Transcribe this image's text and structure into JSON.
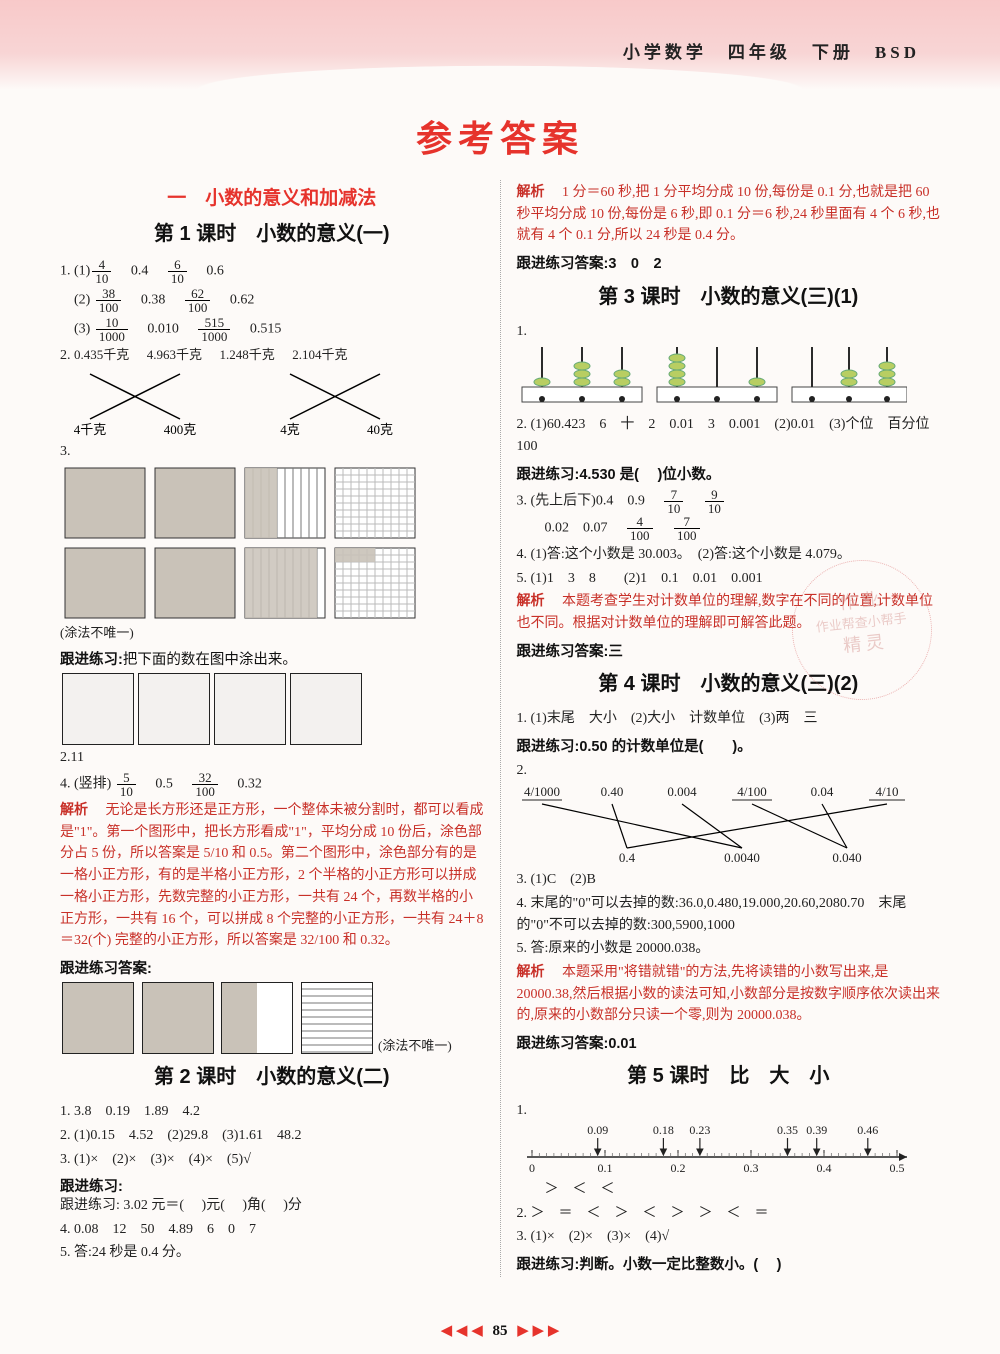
{
  "header": {
    "right": "小学数学　四年级　下册　BSD"
  },
  "main_title": "参考答案",
  "footer": {
    "page": "85",
    "arrows_left": "◀ ◀ ◀",
    "arrows_right": "▶ ▶ ▶"
  },
  "watermark": {
    "l1": "作 业",
    "l2": "作业帮查小帮手",
    "l3": "精 灵"
  },
  "left": {
    "chapter": "一　小数的意义和加减法",
    "s1": {
      "title": "第 1 课时　小数的意义(一)",
      "q1": {
        "label": "1.",
        "r1": {
          "f1n": "4",
          "f1d": "10",
          "v1": "0.4",
          "f2n": "6",
          "f2d": "10",
          "v2": "0.6"
        },
        "r2": {
          "lbl": "(2)",
          "f1n": "38",
          "f1d": "100",
          "v1": "0.38",
          "f2n": "62",
          "f2d": "100",
          "v2": "0.62"
        },
        "r3": {
          "lbl": "(3)",
          "f1n": "10",
          "f1d": "1000",
          "v1": "0.010",
          "f2n": "515",
          "f2d": "1000",
          "v2": "0.515"
        }
      },
      "q2": {
        "label": "2.",
        "items": [
          "0.435千克",
          "4.963千克",
          "1.248千克",
          "2.104千克"
        ],
        "bottom_labels": [
          "4千克",
          "400克",
          "4克",
          "40克"
        ],
        "cross_color": "#000",
        "box_fill": "#e8e4e0",
        "box_border": "#333"
      },
      "q3": {
        "label": "3.",
        "note": "(涂法不唯一)",
        "colors": {
          "fill": "#c9c2b8",
          "stripes": "#777",
          "border": "#333"
        }
      },
      "follow1": {
        "label": "跟进练习:",
        "text": "把下面的数在图中涂出来。",
        "val": "2.11",
        "box_border": "#333"
      },
      "q4": {
        "label": "4.",
        "head": "(竖排)",
        "f1n": "5",
        "f1d": "10",
        "v1": "0.5",
        "f2n": "32",
        "f2d": "100",
        "v2": "0.32"
      },
      "expl_label": "解析",
      "expl_text": "无论是长方形还是正方形，一个整体未被分割时，都可以看成是\"1\"。第一个图形中，把长方形看成\"1\"，平均分成 10 份后，涂色部分占 5 份，所以答案是 5/10 和 0.5。第二个图形中，涂色部分有的是一格小正方形，有的是半格小正方形，2 个半格的小正方形可以拼成一格小正方形，先数完整的小正方形，一共有 24 个，再数半格的小正方形，一共有 16 个，可以拼成 8 个完整的小正方形，一共有 24＋8＝32(个) 完整的小正方形，所以答案是 32/100 和 0.32。",
      "follow_ans_label": "跟进练习答案:",
      "follow_ans_note": "(涂法不唯一)"
    },
    "s2": {
      "title": "第 2 课时　小数的意义(二)",
      "q1": "1.  3.8　0.19　1.89　4.2",
      "q2": "2.  (1)0.15　4.52　(2)29.8　(3)1.61　48.2",
      "q3": "3.  (1)×　(2)×　(3)×　(4)×　(5)√",
      "follow": "跟进练习: 3.02 元＝(　 )元(　 )角(　 )分",
      "q4": "4.  0.08　12　50　4.89　6　0　7",
      "q5": "5.  答:24 秒是 0.4 分。"
    }
  },
  "right": {
    "top_expl_label": "解析",
    "top_expl_text": "1 分＝60 秒,把 1 分平均分成 10 份,每份是 0.1 分,也就是把 60 秒平均分成 10 份,每份是 6 秒,即 0.1 分＝6 秒,24 秒里面有 4 个 6 秒,也就有 4 个 0.1 分,所以 24 秒是 0.4 分。",
    "follow_top": "跟进练习答案:3　0　2",
    "s3": {
      "title": "第 3 课时　小数的意义(三)(1)",
      "q1_label": "1.",
      "abacus": {
        "rod_color": "#2b2b2b",
        "bead_colors": [
          "#b8ce62",
          "#b8ce62",
          "#b8ce62"
        ],
        "frame_border": "#444"
      },
      "q2": "2.  (1)60.423　6　十　2　0.01　3　0.001　(2)0.01　(3)个位　百分位　100",
      "follow": "跟进练习:4.530 是(　 )位小数。",
      "q3": {
        "label": "3.",
        "head": "(先上后下)0.4　0.9",
        "f1n": "7",
        "f1d": "10",
        "f2n": "9",
        "f2d": "10",
        "row2": "0.02　0.07",
        "f3n": "4",
        "f3d": "100",
        "f4n": "7",
        "f4d": "100"
      },
      "q4": "4.  (1)答:这个小数是 30.003。　(2)答:这个小数是 4.079。",
      "q5": "5.  (1)1　3　8　　(2)1　0.1　0.01　0.001",
      "expl_label": "解析",
      "expl_text": "本题考查学生对计数单位的理解,数字在不同的位置,计数单位也不同。根据对计数单位的理解即可解答此题。",
      "follow_ans": "跟进练习答案:三"
    },
    "s4": {
      "title": "第 4 课时　小数的意义(三)(2)",
      "q1": "1.  (1)末尾　大小　(2)大小　计数单位　(3)两　三",
      "follow": "跟进练习:0.50 的计数单位是(　　)。",
      "q2_top": [
        "4/1000",
        "0.40",
        "0.004",
        "4/100",
        "0.04",
        "4/10"
      ],
      "q2_bot": [
        "0.4",
        "0.0040",
        "0.040"
      ],
      "q2_label": "2.",
      "cross_color": "#000",
      "q3": "3.  (1)C　(2)B",
      "q4": "4.  末尾的\"0\"可以去掉的数:36.0,0.480,19.000,20.60,2080.70　末尾的\"0\"不可以去掉的数:300,5900,1000",
      "q5": "5.  答:原来的小数是 20000.038。",
      "expl_label": "解析",
      "expl_text": "本题采用\"将错就错\"的方法,先将读错的小数写出来,是 20000.38,然后根据小数的读法可知,小数部分是按数字顺序依次读出来的,原来的小数部分只读一个零,则为 20000.038。",
      "follow_ans": "跟进练习答案:0.01"
    },
    "s5": {
      "title": "第 5 课时　比　大　小",
      "q1_label": "1.",
      "numline": {
        "ticks": [
          "0",
          "0.1",
          "0.2",
          "0.3",
          "0.4",
          "0.5"
        ],
        "marks": [
          {
            "v": "0.09",
            "x": 0.09
          },
          {
            "v": "0.18",
            "x": 0.18
          },
          {
            "v": "0.23",
            "x": 0.23
          },
          {
            "v": "0.35",
            "x": 0.35
          },
          {
            "v": "0.39",
            "x": 0.39
          },
          {
            "v": "0.46",
            "x": 0.46
          }
        ],
        "line_color": "#222",
        "mark_color": "#222"
      },
      "q1b": "　　＞　＜　＜",
      "q2": "2.  ＞　＝　＜　＞　＜　＞　＞　＜　＝",
      "q3": "3.  (1)×　(2)×　(3)×　(4)√",
      "follow": "跟进练习:判断。小数一定比整数小。(　 )"
    }
  }
}
